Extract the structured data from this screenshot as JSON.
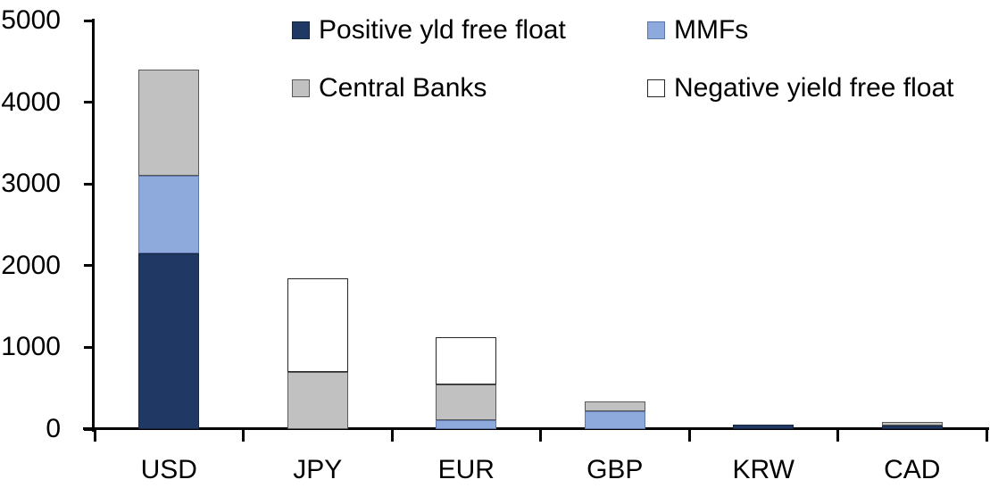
{
  "chart_data": {
    "type": "bar",
    "stacked": true,
    "title": "",
    "xlabel": "",
    "ylabel": "",
    "categories": [
      "USD",
      "JPY",
      "EUR",
      "GBP",
      "KRW",
      "CAD"
    ],
    "series": [
      {
        "name": "Positive yld free float",
        "color": "#1f3864",
        "border": "#17263f",
        "values": [
          2150,
          0,
          0,
          0,
          50,
          45
        ]
      },
      {
        "name": "MMFs",
        "color": "#8ea9dc",
        "border": "#5d77a8",
        "values": [
          950,
          0,
          110,
          220,
          0,
          0
        ]
      },
      {
        "name": "Central Banks",
        "color": "#c1c1c1",
        "border": "#595959",
        "values": [
          1300,
          700,
          440,
          120,
          0,
          45
        ]
      },
      {
        "name": "Negative yield free float",
        "color": "#ffffff",
        "border": "#262626",
        "values": [
          0,
          1150,
          570,
          0,
          0,
          0
        ]
      }
    ],
    "totals": {
      "USD": 4400,
      "JPY": 1850,
      "EUR": 1120,
      "GBP": 340,
      "KRW": 50,
      "CAD": 90
    },
    "ylim": [
      0,
      5000
    ],
    "ytick_interval": 1000,
    "ytick_labels": [
      "0",
      "1000",
      "2000",
      "3000",
      "4000",
      "5000"
    ],
    "grid": false,
    "legend_position": "top-inside-two-columns",
    "axis_color": "#000000"
  }
}
